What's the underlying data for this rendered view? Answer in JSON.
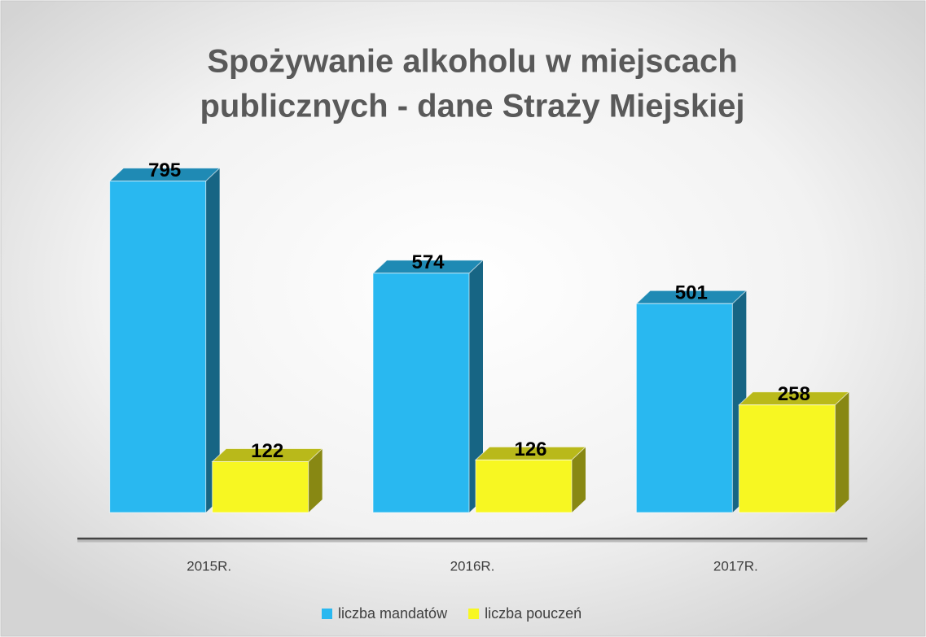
{
  "chart_data": {
    "type": "bar3d",
    "title": "Spożywanie alkoholu w miejscach",
    "subtitle": "publicznych - dane Straży Miejskiej",
    "categories": [
      "2015R.",
      "2016R.",
      "2017R."
    ],
    "series": [
      {
        "name": "liczba mandatów",
        "color": "#29b8f0",
        "values": [
          795,
          574,
          501
        ]
      },
      {
        "name": "liczba pouczeń",
        "color": "#f7f722",
        "values": [
          122,
          126,
          258
        ]
      }
    ],
    "ylim": [
      0,
      800
    ]
  }
}
